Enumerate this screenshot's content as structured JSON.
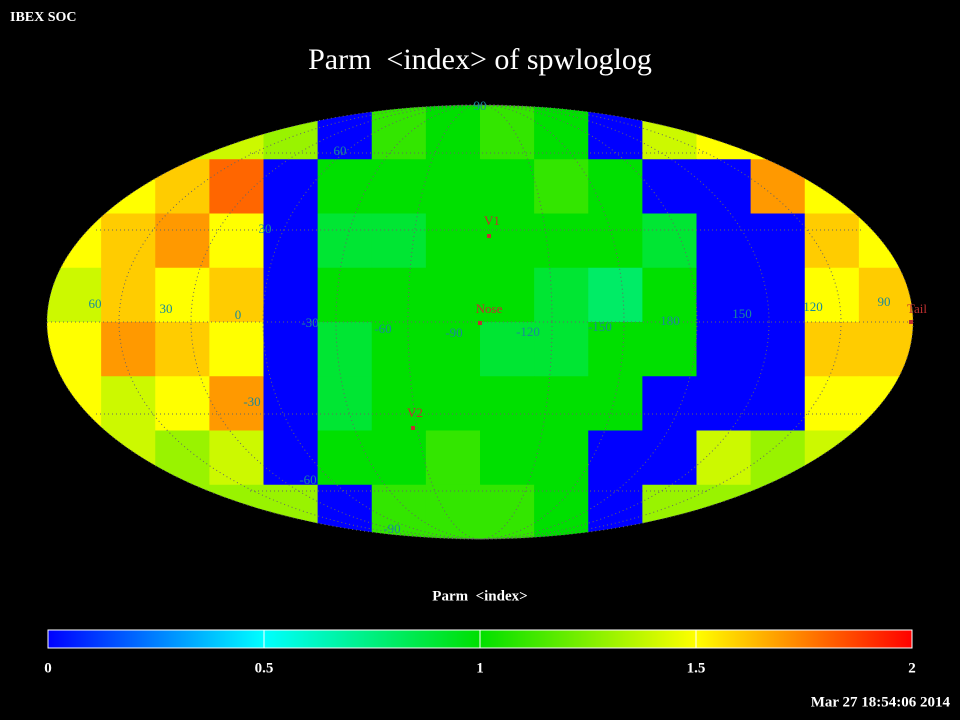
{
  "header": {
    "label": "IBEX SOC",
    "title": "Parm  <index> of spwloglog",
    "timestamp": "Mar 27 18:54:06 2014"
  },
  "map": {
    "cells": [
      [
        1.4,
        1.4,
        1.4,
        1.4,
        1.3,
        0,
        1.1,
        1.0,
        1.1,
        1.0,
        0,
        1.4,
        1.5,
        1.5,
        1.4,
        1.4
      ],
      [
        1.4,
        1.5,
        1.6,
        1.8,
        0,
        1.0,
        1.0,
        1.0,
        1.0,
        1.1,
        1.0,
        0,
        0,
        1.7,
        1.5,
        1.4
      ],
      [
        1.5,
        1.6,
        1.7,
        1.5,
        0,
        0.9,
        0.9,
        1.0,
        1.0,
        1.0,
        1.0,
        0.9,
        0,
        0,
        1.6,
        1.5
      ],
      [
        1.4,
        1.6,
        1.5,
        1.6,
        0,
        1.0,
        1.0,
        1.0,
        1.0,
        0.9,
        0.8,
        1.0,
        0,
        0,
        1.5,
        1.6
      ],
      [
        1.5,
        1.7,
        1.6,
        1.5,
        0,
        0.9,
        1.0,
        1.0,
        0.9,
        0.9,
        1.0,
        1.0,
        0,
        0,
        1.6,
        1.6
      ],
      [
        1.5,
        1.4,
        1.5,
        1.7,
        0,
        0.9,
        1.0,
        1.0,
        1.0,
        1.0,
        1.0,
        0,
        0,
        0,
        1.5,
        1.5
      ],
      [
        1.4,
        1.4,
        1.3,
        1.4,
        0,
        1.0,
        1.0,
        1.1,
        1.0,
        1.0,
        0,
        0,
        1.4,
        1.3,
        1.4,
        1.4
      ],
      [
        1.4,
        1.3,
        1.3,
        1.3,
        1.3,
        0,
        1.1,
        1.1,
        1.1,
        1.0,
        0,
        1.3,
        1.3,
        1.3,
        1.3,
        1.3
      ]
    ],
    "lon_labels": [
      "60",
      "30",
      "0",
      "-30",
      "-60",
      "-90",
      "-120",
      "-150",
      "180",
      "150",
      "120",
      "90"
    ],
    "lat_labels": [
      "90",
      "60",
      "30",
      "-30",
      "-60",
      "-90"
    ],
    "markers": [
      "V1",
      "Nose",
      "V2",
      "Tail"
    ]
  },
  "colorbar": {
    "label": "Parm  <index>",
    "lim": [
      0,
      2
    ],
    "ticks": [
      0,
      0.5,
      1,
      1.5,
      2
    ],
    "colors": [
      "#0000ff",
      "#00ffff",
      "#00e000",
      "#ffff00",
      "#ff0000"
    ]
  }
}
